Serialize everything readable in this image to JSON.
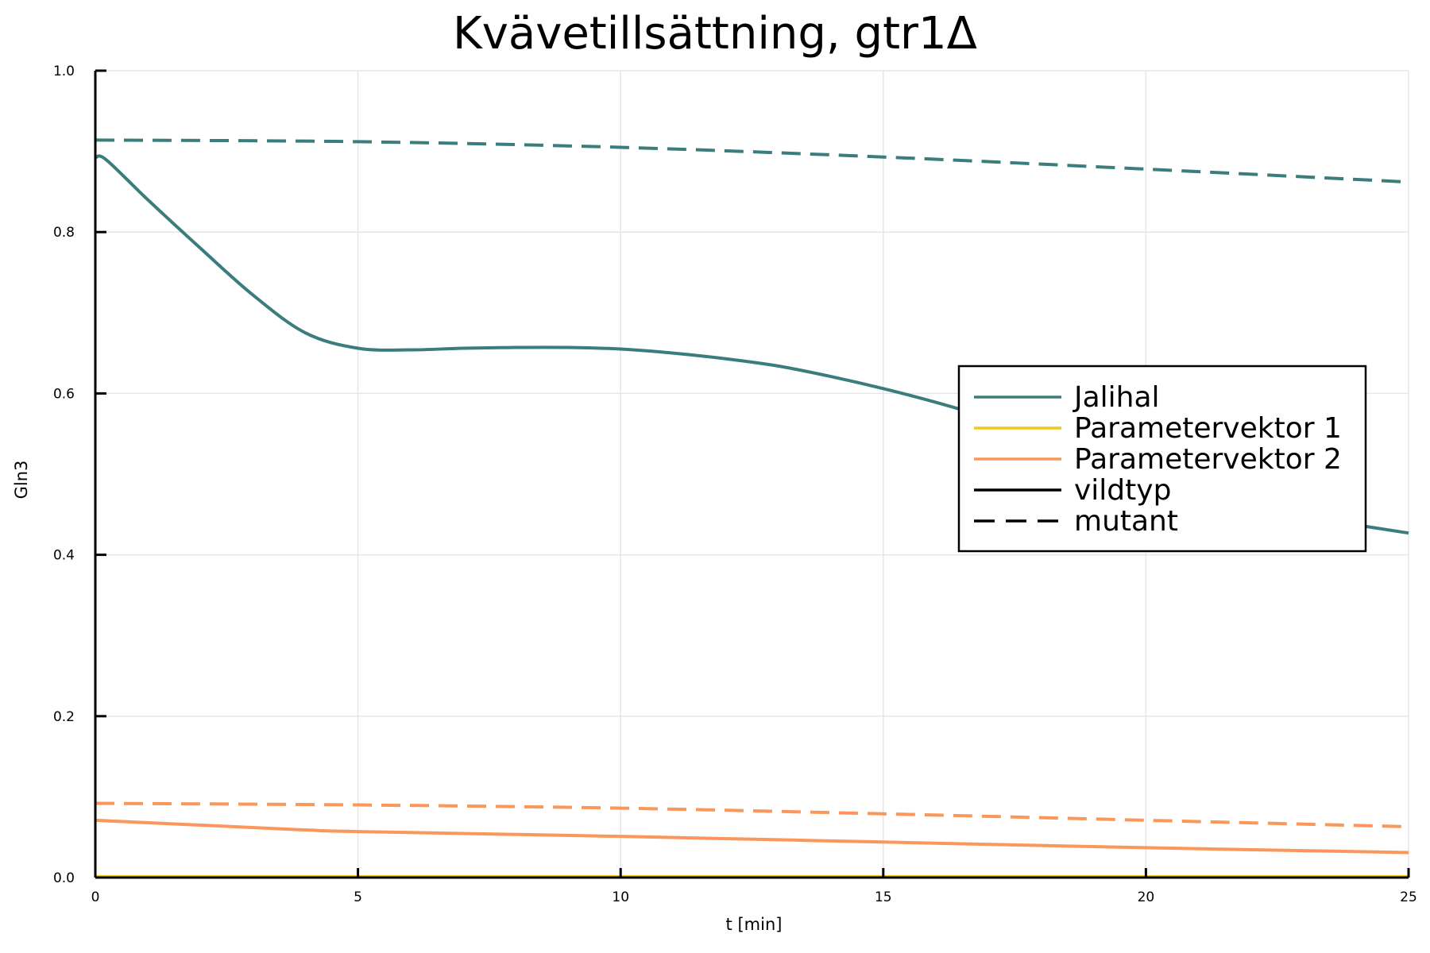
{
  "chart_data": {
    "type": "line",
    "title": "Kvävetillsättning, gtr1Δ",
    "xlabel": "t [min]",
    "ylabel": "Gln3",
    "xlim": [
      0,
      25
    ],
    "ylim": [
      0,
      1
    ],
    "x_ticks": [
      "0",
      "5",
      "10",
      "15",
      "20",
      "25"
    ],
    "y_ticks": [
      "0.0",
      "0.2",
      "0.4",
      "0.6",
      "0.8",
      "1.0"
    ],
    "grid": true,
    "legend_position": "right",
    "colors": {
      "Jalihal": "#3b7c7c",
      "Parametervektor 1": "#f2c81b",
      "Parametervektor 2": "#f9985a",
      "axis": "#000000"
    },
    "legend": [
      {
        "label": "Jalihal",
        "color": "#3b7c7c",
        "style": "solid"
      },
      {
        "label": "Parametervektor 1",
        "color": "#f2c81b",
        "style": "solid"
      },
      {
        "label": "Parametervektor 2",
        "color": "#f9985a",
        "style": "solid"
      },
      {
        "label": "vildtyp",
        "color": "#000000",
        "style": "solid"
      },
      {
        "label": "mutant",
        "color": "#000000",
        "style": "dashed"
      }
    ],
    "series": [
      {
        "model": "Jalihal",
        "variant": "mutant",
        "color": "#3b7c7c",
        "style": "dashed",
        "x": [
          0,
          5,
          10,
          15,
          20,
          25
        ],
        "y": [
          0.914,
          0.912,
          0.905,
          0.893,
          0.878,
          0.862
        ]
      },
      {
        "model": "Jalihal",
        "variant": "vildtyp",
        "color": "#3b7c7c",
        "style": "solid",
        "x": [
          0,
          0.2,
          1,
          2,
          3,
          4,
          5,
          6,
          7,
          8,
          9,
          10,
          11,
          12,
          13,
          14,
          15,
          16,
          17,
          18,
          19,
          20,
          21,
          22,
          23,
          24,
          25
        ],
        "y": [
          0.892,
          0.89,
          0.84,
          0.78,
          0.722,
          0.675,
          0.656,
          0.654,
          0.656,
          0.657,
          0.657,
          0.655,
          0.65,
          0.643,
          0.634,
          0.621,
          0.606,
          0.589,
          0.57,
          0.55,
          0.528,
          0.505,
          0.482,
          0.463,
          0.447,
          0.437,
          0.427
        ]
      },
      {
        "model": "Parametervektor 2",
        "variant": "mutant",
        "color": "#f9985a",
        "style": "dashed",
        "x": [
          0,
          5,
          10,
          15,
          20,
          25
        ],
        "y": [
          0.092,
          0.09,
          0.086,
          0.079,
          0.071,
          0.063
        ]
      },
      {
        "model": "Parametervektor 2",
        "variant": "vildtyp",
        "color": "#f9985a",
        "style": "solid",
        "x": [
          0,
          2,
          4,
          5,
          10,
          15,
          20,
          25
        ],
        "y": [
          0.071,
          0.065,
          0.059,
          0.057,
          0.051,
          0.044,
          0.037,
          0.031
        ]
      },
      {
        "model": "Parametervektor 1",
        "variant": "vildtyp",
        "color": "#f2c81b",
        "style": "solid",
        "x": [
          0,
          25
        ],
        "y": [
          0.001,
          0.001
        ]
      },
      {
        "model": "Parametervektor 1",
        "variant": "mutant",
        "color": "#f2c81b",
        "style": "dashed",
        "x": [
          0,
          25
        ],
        "y": [
          0.001,
          0.001
        ]
      }
    ]
  }
}
